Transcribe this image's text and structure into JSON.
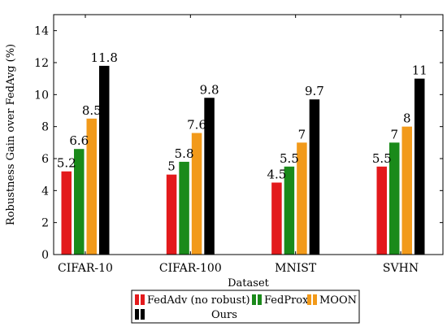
{
  "chart_data": {
    "type": "bar",
    "xlabel": "Dataset",
    "ylabel": "Robustness Gain over FedAvg (%)",
    "categories": [
      "CIFAR-10",
      "CIFAR-100",
      "MNIST",
      "SVHN"
    ],
    "ylim": [
      0,
      15
    ],
    "yticks": [
      0,
      2,
      4,
      6,
      8,
      10,
      12,
      14
    ],
    "grid": false,
    "legend_position": "bottom",
    "series": [
      {
        "name": "FedAdv (no robust)",
        "color": "#e31a1c",
        "values": [
          5.2,
          5,
          4.5,
          5.5
        ],
        "labels": [
          "5.2",
          "5",
          "4.5",
          "5.5"
        ]
      },
      {
        "name": "FedProx",
        "color": "#1a8a1a",
        "values": [
          6.6,
          5.8,
          5.5,
          7
        ],
        "labels": [
          "6.6",
          "5.8",
          "5.5",
          "7"
        ]
      },
      {
        "name": "MOON",
        "color": "#f29a1a",
        "values": [
          8.5,
          7.6,
          7,
          8
        ],
        "labels": [
          "8.5",
          "7.6",
          "7",
          "8"
        ]
      },
      {
        "name": "Ours",
        "color": "#000000",
        "values": [
          11.8,
          9.8,
          9.7,
          11
        ],
        "labels": [
          "11.8",
          "9.8",
          "9.7",
          "11"
        ]
      }
    ]
  }
}
